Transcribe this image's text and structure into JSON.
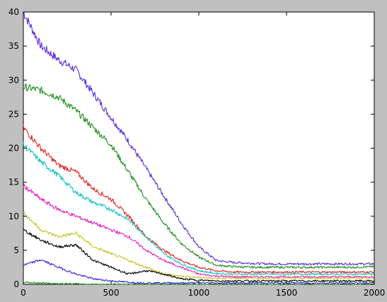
{
  "chart_data": {
    "type": "line",
    "title": "",
    "xlabel": "",
    "ylabel": "",
    "xlim": [
      0,
      2000
    ],
    "ylim": [
      0,
      40
    ],
    "xticks": [
      0,
      500,
      1000,
      1500,
      2000
    ],
    "yticks": [
      0,
      5,
      10,
      15,
      20,
      25,
      30,
      35,
      40
    ],
    "grid": false,
    "legend": "none",
    "x": [
      0,
      100,
      200,
      300,
      400,
      500,
      600,
      700,
      800,
      900,
      1000,
      1100,
      1200,
      1300,
      1400,
      1500,
      1600,
      1700,
      1800,
      1900,
      2000
    ],
    "series": [
      {
        "color": "#5a2bd9",
        "values": [
          40.0,
          35.0,
          33.0,
          31.5,
          28.0,
          24.5,
          21.0,
          17.0,
          13.0,
          9.0,
          5.5,
          3.5,
          3.2,
          3.1,
          3.0,
          3.0,
          3.0,
          3.0,
          3.0,
          3.0,
          3.0
        ]
      },
      {
        "color": "#1e8f1e",
        "values": [
          29.0,
          28.5,
          27.5,
          25.5,
          23.0,
          20.5,
          16.5,
          12.5,
          9.0,
          6.0,
          4.0,
          2.8,
          2.6,
          2.5,
          2.5,
          2.5,
          2.5,
          2.5,
          2.5,
          2.5,
          2.6
        ]
      },
      {
        "color": "#e62020",
        "values": [
          23.0,
          20.0,
          17.5,
          16.5,
          14.0,
          12.5,
          10.0,
          7.0,
          5.0,
          3.5,
          2.5,
          2.0,
          1.8,
          1.8,
          1.8,
          1.8,
          1.8,
          1.8,
          1.8,
          1.8,
          1.8
        ]
      },
      {
        "color": "#12c0c6",
        "values": [
          20.5,
          18.0,
          16.0,
          13.5,
          12.0,
          11.0,
          9.5,
          7.0,
          4.5,
          3.0,
          2.0,
          1.6,
          1.5,
          1.5,
          1.5,
          1.5,
          1.5,
          1.5,
          1.5,
          1.5,
          1.5
        ]
      },
      {
        "color": "#e020c8",
        "values": [
          14.5,
          12.5,
          11.0,
          10.0,
          9.0,
          8.0,
          7.0,
          5.0,
          3.5,
          2.5,
          1.5,
          1.2,
          1.1,
          1.1,
          1.1,
          1.1,
          1.1,
          1.1,
          1.1,
          1.1,
          1.1
        ]
      },
      {
        "color": "#c4c41a",
        "values": [
          10.5,
          8.0,
          7.0,
          7.5,
          5.5,
          4.5,
          3.5,
          2.5,
          1.5,
          1.2,
          1.0,
          0.9,
          0.9,
          0.9,
          0.9,
          0.9,
          0.9,
          0.9,
          0.9,
          0.9,
          0.9
        ]
      },
      {
        "color": "#000000",
        "values": [
          8.0,
          6.5,
          5.5,
          5.8,
          3.5,
          2.5,
          1.5,
          2.0,
          1.5,
          0.8,
          0.6,
          0.5,
          0.5,
          0.5,
          0.5,
          0.5,
          0.5,
          0.5,
          0.5,
          0.5,
          0.5
        ]
      },
      {
        "color": "#3a22d0",
        "values": [
          2.8,
          3.6,
          2.5,
          1.5,
          0.8,
          0.5,
          0.3,
          0.2,
          0.2,
          0.2,
          0.2,
          0.2,
          0.2,
          0.2,
          0.2,
          0.2,
          0.2,
          0.2,
          0.2,
          0.2,
          0.2
        ]
      },
      {
        "color": "#1e8f1e",
        "values": [
          0.3,
          0.2,
          0.1,
          0.05,
          0.0,
          0.0,
          0.0,
          0.0,
          0.0,
          0.0,
          0.0,
          0.0,
          0.0,
          0.0,
          0.0,
          0.0,
          0.0,
          0.0,
          0.0,
          0.0,
          0.0
        ]
      }
    ]
  }
}
